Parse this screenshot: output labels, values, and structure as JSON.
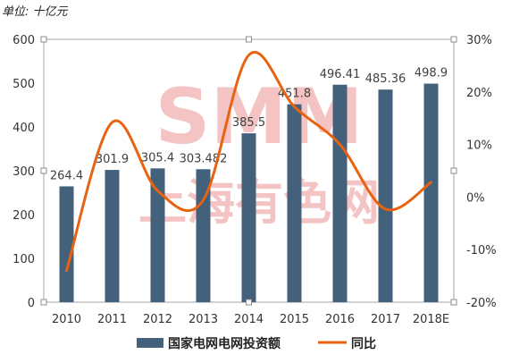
{
  "unit_label": "单位: 十亿元",
  "watermark": {
    "logo": "SMM",
    "text": "上海有色网"
  },
  "colors": {
    "bar": "#44617B",
    "line": "#E8620F",
    "watermark": "#F2B6B6",
    "frame": "#A6A6A6"
  },
  "chart_data": {
    "type": "bar",
    "categories": [
      "2010",
      "2011",
      "2012",
      "2013",
      "2014",
      "2015",
      "2016",
      "2017",
      "2018E"
    ],
    "series": [
      {
        "name": "国家电网电网投资额",
        "type": "bar",
        "axis": "left",
        "values": [
          264.4,
          301.9,
          305.4,
          303.482,
          385.5,
          451.8,
          496.41,
          485.36,
          498.9
        ],
        "labels": [
          "264.4",
          "301.9",
          "305.4",
          "303.482",
          "385.5",
          "451.8",
          "496.41",
          "485.36",
          "498.9"
        ]
      },
      {
        "name": "同比",
        "type": "line",
        "axis": "right",
        "smooth": true,
        "values": [
          -14,
          14.2,
          1.2,
          -0.6,
          27,
          17.2,
          10,
          -2.3,
          2.8
        ]
      }
    ],
    "y_left": {
      "min": 0,
      "max": 600,
      "ticks": [
        "0",
        "100",
        "200",
        "300",
        "400",
        "500",
        "600"
      ]
    },
    "y_right": {
      "min": -20,
      "max": 30,
      "ticks": [
        "-20%",
        "-10%",
        "0%",
        "10%",
        "20%",
        "30%"
      ]
    },
    "legend_position": "bottom",
    "grid": false
  }
}
